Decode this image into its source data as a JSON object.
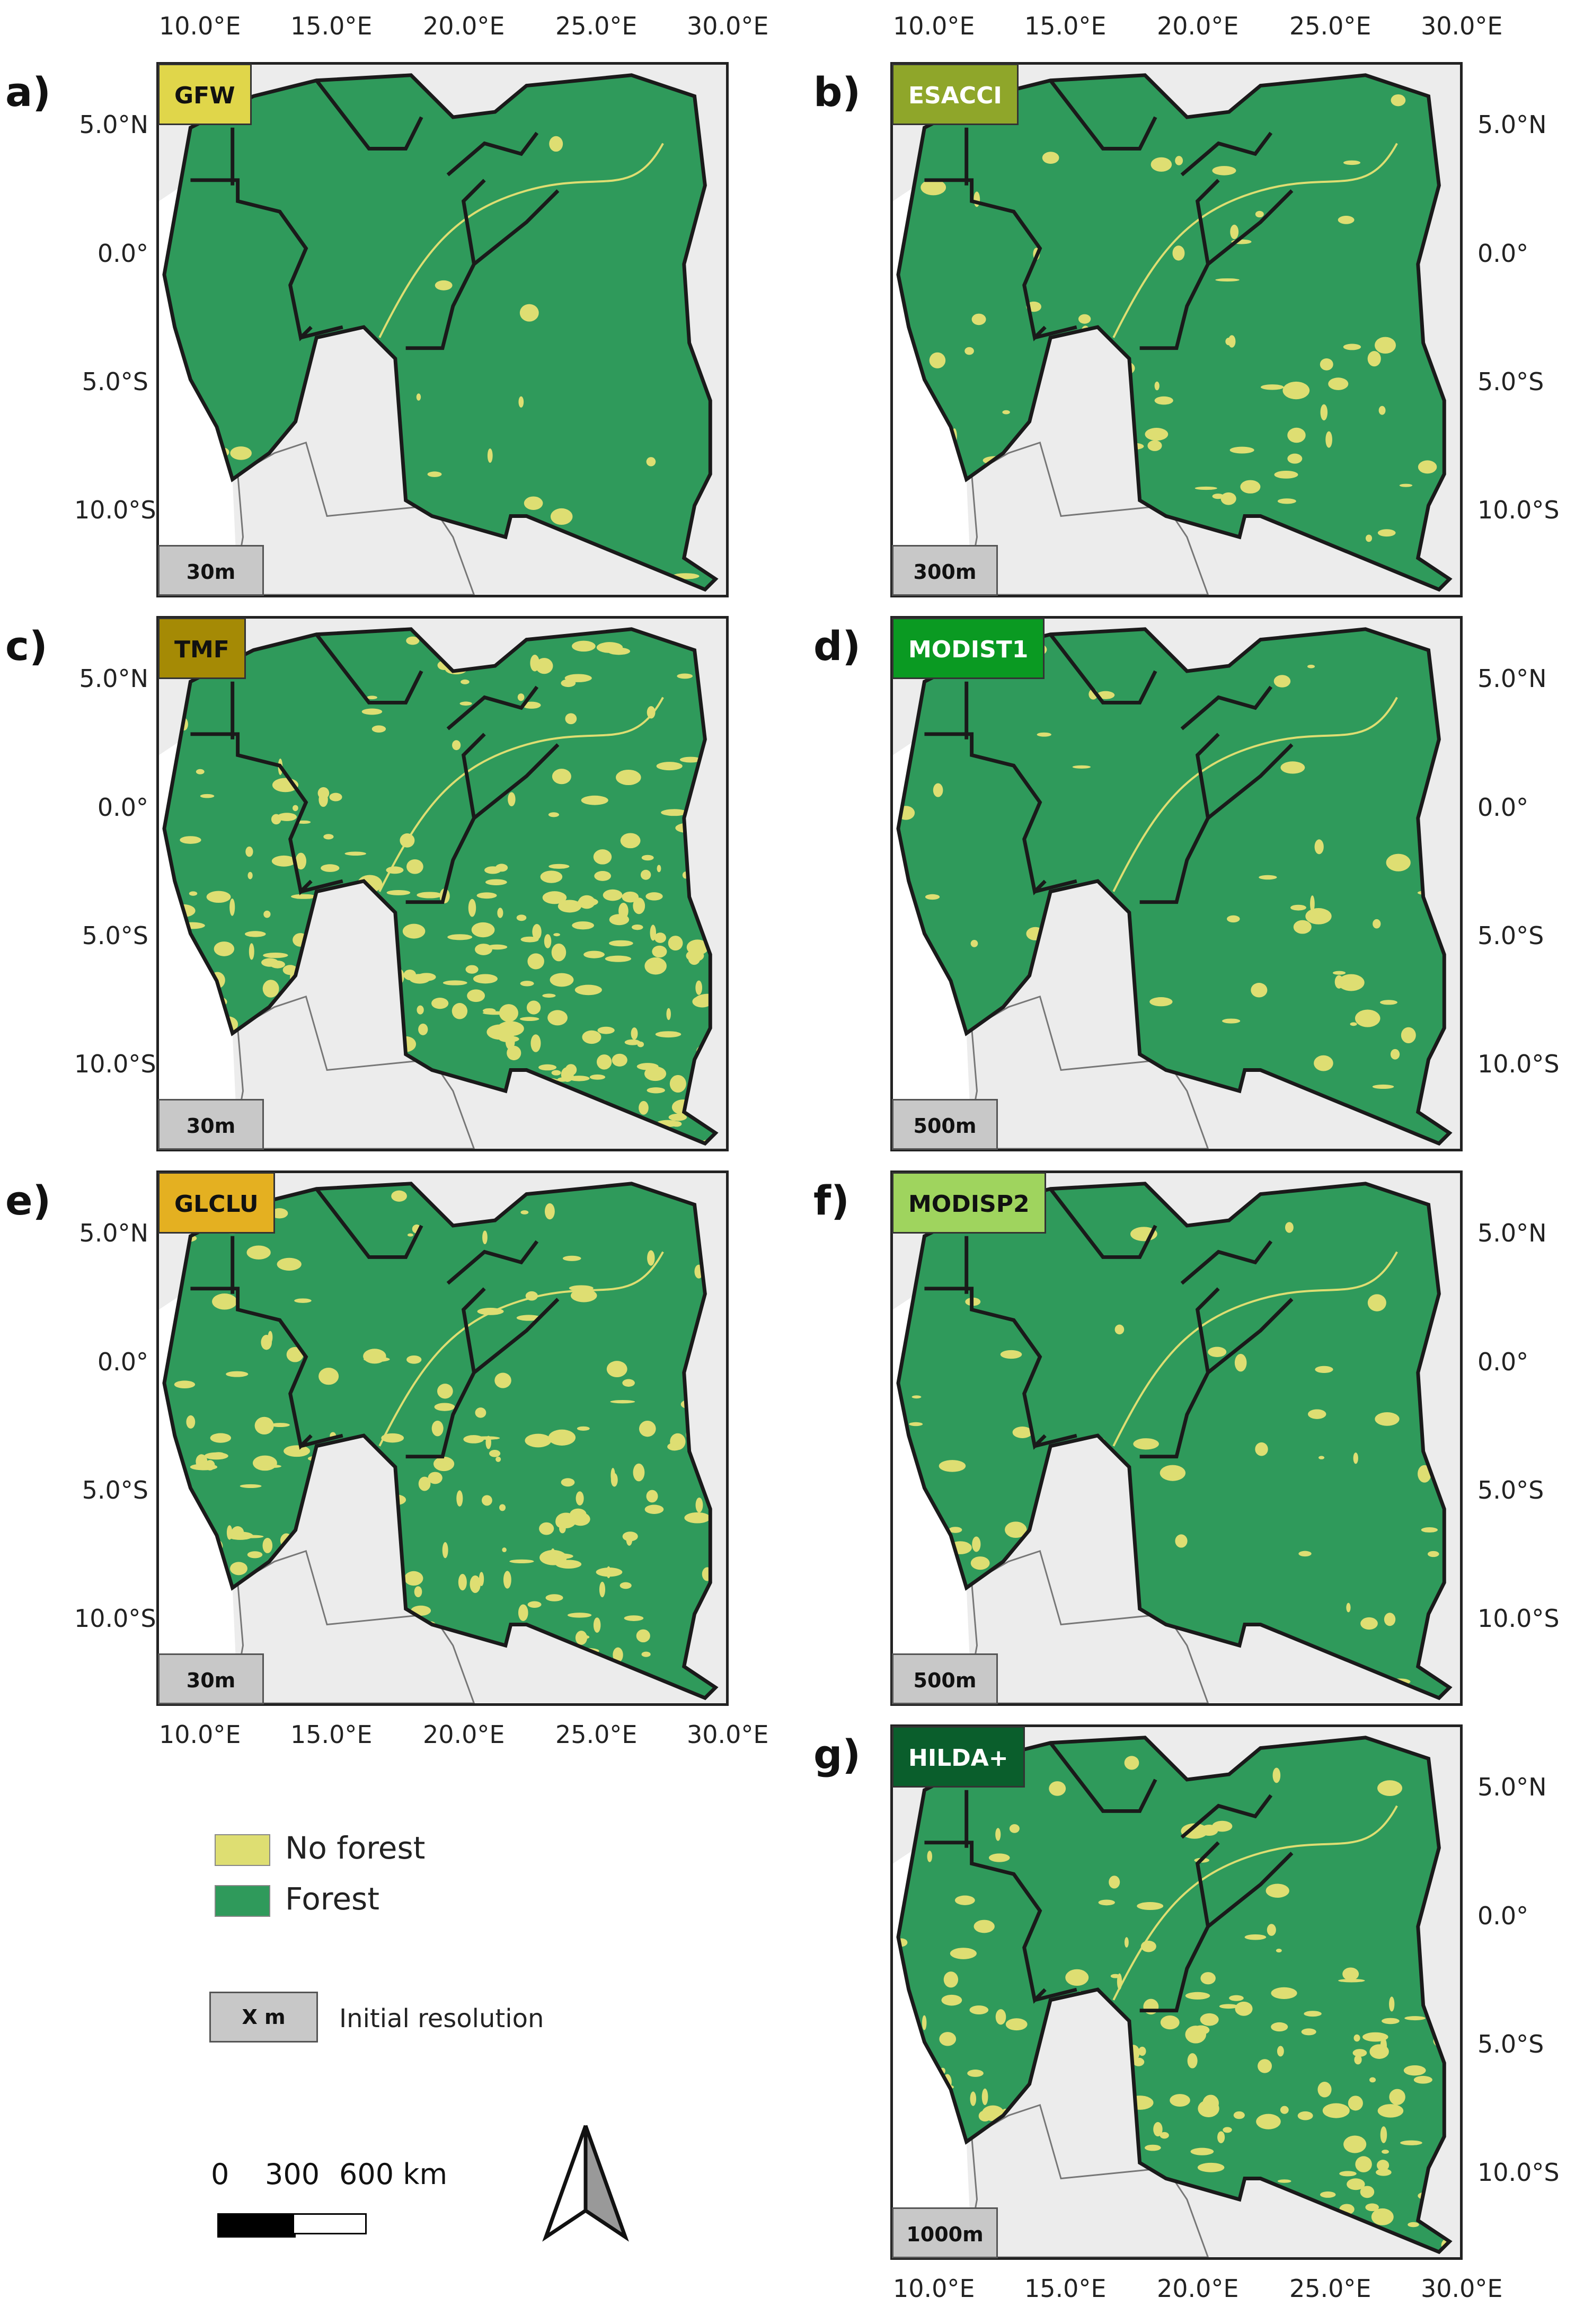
{
  "colors": {
    "forest": "#2f9a5b",
    "no_forest": "#dede72",
    "background_land": "#ececec",
    "water": "#ffffff"
  },
  "lon_ticks": [
    "10.0°E",
    "15.0°E",
    "20.0°E",
    "25.0°E",
    "30.0°E"
  ],
  "lat_ticks": [
    "5.0°N",
    "0.0°",
    "5.0°S",
    "10.0°S"
  ],
  "panels": [
    {
      "letter": "a)",
      "dataset": "GFW",
      "resolution": "30m",
      "label_color": "#e0d64a",
      "label_text_color": "#111111",
      "no_forest_fraction": 0.03
    },
    {
      "letter": "b)",
      "dataset": "ESACCI",
      "resolution": "300m",
      "label_color": "#8fa62a",
      "label_text_color": "#ffffff",
      "no_forest_fraction": 0.12
    },
    {
      "letter": "c)",
      "dataset": "TMF",
      "resolution": "30m",
      "label_color": "#a58a05",
      "label_text_color": "#111111",
      "no_forest_fraction": 0.45
    },
    {
      "letter": "d)",
      "dataset": "MODIST1",
      "resolution": "500m",
      "label_color": "#0a9a22",
      "label_text_color": "#ffffff",
      "no_forest_fraction": 0.08
    },
    {
      "letter": "e)",
      "dataset": "GLCLU",
      "resolution": "30m",
      "label_color": "#e4b021",
      "label_text_color": "#111111",
      "no_forest_fraction": 0.3
    },
    {
      "letter": "f)",
      "dataset": "MODISP2",
      "resolution": "500m",
      "label_color": "#9fd45e",
      "label_text_color": "#111111",
      "no_forest_fraction": 0.07
    },
    {
      "letter": "g)",
      "dataset": "HILDA+",
      "resolution": "1000m",
      "label_color": "#0a5e2c",
      "label_text_color": "#ffffff",
      "no_forest_fraction": 0.3
    }
  ],
  "legend": {
    "no_forest": "No forest",
    "forest": "Forest",
    "resolution_box": "X m",
    "resolution_text": "Initial resolution"
  },
  "scale_bar": {
    "labels": [
      "0",
      "300",
      "600 km"
    ]
  }
}
